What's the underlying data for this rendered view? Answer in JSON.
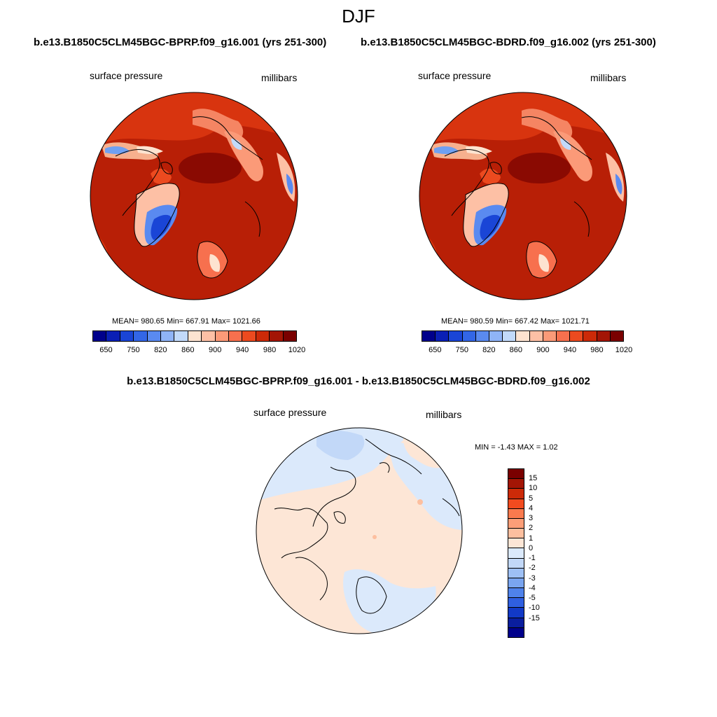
{
  "season": "DJF",
  "panels": [
    {
      "case": "b.e13.B1850C5CLM45BGC-BPRP.f09_g16.001 (yrs 251-300)",
      "variable": "surface pressure",
      "units": "millibars",
      "stats": "MEAN= 980.65  Min= 667.91  Max= 1021.66"
    },
    {
      "case": "b.e13.B1850C5CLM45BGC-BDRD.f09_g16.002 (yrs 251-300)",
      "variable": "surface pressure",
      "units": "millibars",
      "stats": "MEAN= 980.59  Min= 667.42  Max= 1021.71"
    }
  ],
  "colorbar_abs": {
    "colors": [
      "#00008b",
      "#0a1fb5",
      "#1a45d6",
      "#3366e6",
      "#5a8af0",
      "#8fb4f7",
      "#c2dafa",
      "#fde3d0",
      "#fdc0a5",
      "#fb9a78",
      "#f7704e",
      "#ec4a1f",
      "#cc2a08",
      "#a31505",
      "#7a0000"
    ],
    "ticks": [
      "650",
      "750",
      "820",
      "860",
      "900",
      "940",
      "980",
      "1020"
    ]
  },
  "difference": {
    "title": "b.e13.B1850C5CLM45BGC-BPRP.f09_g16.001 - b.e13.B1850C5CLM45BGC-BDRD.f09_g16.002",
    "variable": "surface pressure",
    "units": "millibars",
    "stats": "MIN =  -1.43 MAX =   1.02"
  },
  "colorbar_diff": {
    "colors": [
      "#7a0000",
      "#a31505",
      "#cc2a08",
      "#f24b1f",
      "#fa7a4e",
      "#fc9e78",
      "#fdbf9f",
      "#fde6d6",
      "#dbe9fb",
      "#c2d8f8",
      "#9ec0f5",
      "#7aa5f0",
      "#4f82ea",
      "#2f5fe0",
      "#1239c6",
      "#0a1e9e",
      "#00008b"
    ],
    "ticks": [
      "15",
      "10",
      "5",
      "4",
      "3",
      "2",
      "1",
      "0",
      "-1",
      "-2",
      "-3",
      "-4",
      "-5",
      "-10",
      "-15"
    ]
  }
}
